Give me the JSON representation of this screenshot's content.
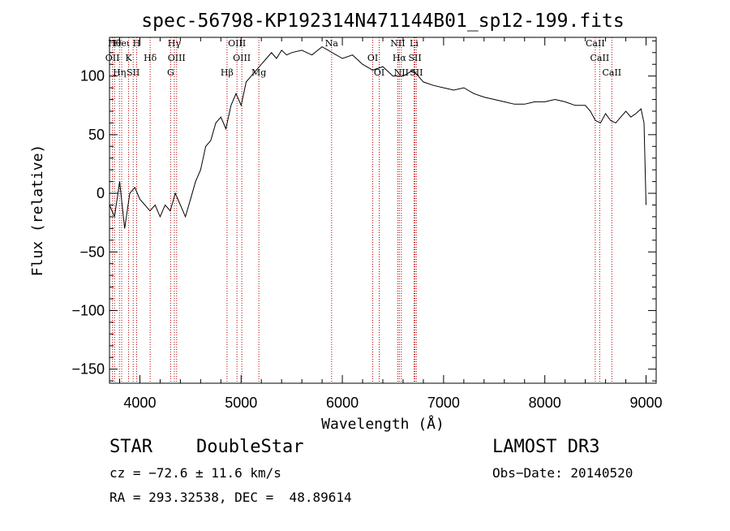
{
  "chart_data": {
    "type": "line",
    "title": "spec-56798-KP192314N471144B01_sp12-199.fits",
    "xlabel": "Wavelength (Å)",
    "ylabel": "Flux (relative)",
    "xlim": [
      3700,
      9100
    ],
    "ylim": [
      -162,
      133
    ],
    "xticks": [
      4000,
      5000,
      6000,
      7000,
      8000,
      9000
    ],
    "yticks": [
      -150,
      -100,
      -50,
      0,
      50,
      100
    ],
    "grid": false,
    "series": [
      {
        "x": [
          3700,
          3750,
          3800,
          3850,
          3900,
          3950,
          4000,
          4050,
          4100,
          4150,
          4200,
          4250,
          4300,
          4350,
          4400,
          4450,
          4500,
          4550,
          4600,
          4650,
          4700,
          4750,
          4800,
          4850,
          4900,
          4950,
          5000,
          5050,
          5100,
          5150,
          5200,
          5250,
          5300,
          5350,
          5400,
          5450,
          5500,
          5600,
          5700,
          5800,
          5900,
          6000,
          6100,
          6200,
          6300,
          6400,
          6500,
          6600,
          6700,
          6800,
          6900,
          7000,
          7100,
          7200,
          7300,
          7400,
          7500,
          7600,
          7700,
          7800,
          7900,
          8000,
          8100,
          8200,
          8300,
          8400,
          8450,
          8500,
          8550,
          8600,
          8650,
          8700,
          8750,
          8800,
          8850,
          8900,
          8950,
          8980,
          9000
        ],
        "y": [
          -10,
          -20,
          10,
          -30,
          0,
          5,
          -5,
          -10,
          -15,
          -10,
          -20,
          -10,
          -15,
          0,
          -10,
          -20,
          -5,
          10,
          20,
          40,
          45,
          60,
          65,
          55,
          75,
          85,
          75,
          95,
          100,
          105,
          110,
          115,
          120,
          115,
          122,
          118,
          120,
          122,
          118,
          125,
          120,
          115,
          118,
          110,
          105,
          108,
          100,
          100,
          105,
          95,
          92,
          90,
          88,
          90,
          85,
          82,
          80,
          78,
          76,
          76,
          78,
          78,
          80,
          78,
          75,
          75,
          70,
          62,
          60,
          68,
          62,
          60,
          65,
          70,
          65,
          68,
          72,
          60,
          -10
        ]
      }
    ],
    "line_ids": [
      {
        "x": 3750,
        "label": "Hθ"
      },
      {
        "x": 3729,
        "label": "OII"
      },
      {
        "x": 3798,
        "label": "Hη"
      },
      {
        "x": 3820,
        "label": "Heι"
      },
      {
        "x": 3889,
        "label": "K"
      },
      {
        "x": 3934,
        "label": "SII"
      },
      {
        "x": 3968,
        "label": "H"
      },
      {
        "x": 4102,
        "label": "Hδ"
      },
      {
        "x": 4304,
        "label": "G"
      },
      {
        "x": 4340,
        "label": "Hγ"
      },
      {
        "x": 4363,
        "label": "OIII"
      },
      {
        "x": 4861,
        "label": "Hβ"
      },
      {
        "x": 4959,
        "label": "OIII"
      },
      {
        "x": 5007,
        "label": "OIII"
      },
      {
        "x": 5175,
        "label": "Mg"
      },
      {
        "x": 5894,
        "label": "Na"
      },
      {
        "x": 6300,
        "label": "OI"
      },
      {
        "x": 6364,
        "label": "OI"
      },
      {
        "x": 6548,
        "label": "NII"
      },
      {
        "x": 6563,
        "label": "Hα"
      },
      {
        "x": 6583,
        "label": "NII"
      },
      {
        "x": 6708,
        "label": "Li"
      },
      {
        "x": 6717,
        "label": "SII"
      },
      {
        "x": 6731,
        "label": "SII"
      },
      {
        "x": 8498,
        "label": "CaII"
      },
      {
        "x": 8542,
        "label": "CaII"
      },
      {
        "x": 8662,
        "label": "CaII"
      }
    ]
  },
  "info": {
    "class": "STAR",
    "subclass": "DoubleStar",
    "survey": "LAMOST DR3",
    "cz": "cz = −72.6 ± 11.6 km/s",
    "obs_date": "Obs−Date: 20140520",
    "coords": "RA = 293.32538, DEC =  48.89614"
  },
  "colors": {
    "spectrum": "#000000",
    "line_marker": "#b00000"
  }
}
